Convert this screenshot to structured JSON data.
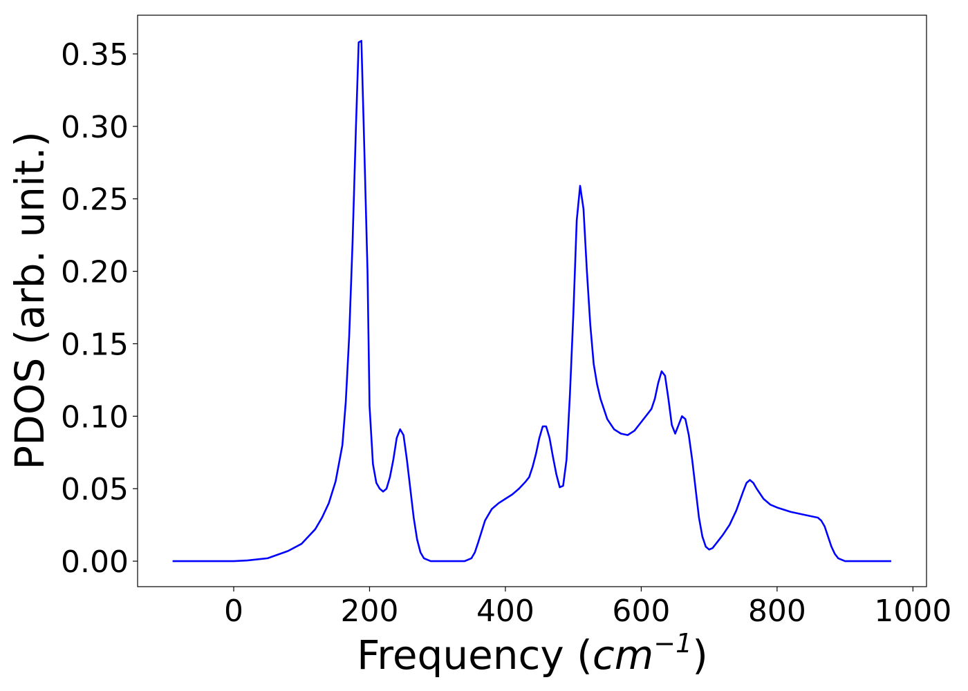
{
  "chart_data": {
    "type": "line",
    "xlabel": [
      "Frequency (",
      "cm",
      "−1",
      ")"
    ],
    "ylabel": "PDOS (arb. unit.)",
    "xlim": [
      -141.5,
      1020
    ],
    "ylim": [
      -0.0176,
      0.3767
    ],
    "xticks": [
      0,
      200,
      400,
      600,
      800,
      1000
    ],
    "yticks": [
      {
        "value": 0,
        "label": "0.00"
      },
      0.05,
      {
        "value": 0.1,
        "label": "0.10"
      },
      0.15,
      {
        "value": 0.2,
        "label": "0.20"
      },
      0.25,
      {
        "value": 0.3,
        "label": "0.30"
      },
      0.35
    ],
    "x": [
      -90,
      -50,
      0,
      20,
      50,
      80,
      100,
      120,
      130,
      140,
      150,
      160,
      165,
      170,
      175,
      180,
      184,
      188,
      192,
      197,
      200,
      205,
      210,
      215,
      220,
      225,
      230,
      235,
      240,
      245,
      250,
      255,
      260,
      265,
      270,
      275,
      280,
      290,
      340,
      350,
      355,
      360,
      370,
      380,
      390,
      400,
      410,
      420,
      430,
      435,
      440,
      445,
      450,
      455,
      460,
      465,
      470,
      475,
      480,
      485,
      490,
      495,
      500,
      505,
      510,
      515,
      520,
      525,
      530,
      535,
      540,
      550,
      560,
      570,
      580,
      590,
      600,
      610,
      615,
      620,
      625,
      630,
      635,
      640,
      645,
      650,
      655,
      660,
      665,
      670,
      675,
      680,
      685,
      690,
      695,
      700,
      705,
      710,
      720,
      730,
      740,
      750,
      755,
      760,
      765,
      770,
      780,
      790,
      800,
      820,
      840,
      860,
      865,
      870,
      875,
      880,
      885,
      890,
      900,
      968
    ],
    "series": [
      {
        "color": "#0000ff",
        "values": [
          0,
          0,
          0,
          0.0005,
          0.002,
          0.007,
          0.012,
          0.022,
          0.03,
          0.04,
          0.055,
          0.08,
          0.11,
          0.155,
          0.22,
          0.3,
          0.358,
          0.359,
          0.29,
          0.2,
          0.107,
          0.067,
          0.054,
          0.05,
          0.048,
          0.05,
          0.058,
          0.07,
          0.085,
          0.091,
          0.087,
          0.07,
          0.05,
          0.03,
          0.015,
          0.006,
          0.002,
          0,
          0,
          0.002,
          0.006,
          0.013,
          0.028,
          0.036,
          0.04,
          0.043,
          0.046,
          0.05,
          0.055,
          0.058,
          0.065,
          0.074,
          0.085,
          0.093,
          0.093,
          0.085,
          0.072,
          0.06,
          0.051,
          0.052,
          0.07,
          0.115,
          0.17,
          0.235,
          0.259,
          0.243,
          0.2,
          0.163,
          0.136,
          0.122,
          0.112,
          0.098,
          0.091,
          0.088,
          0.087,
          0.09,
          0.096,
          0.102,
          0.105,
          0.112,
          0.123,
          0.131,
          0.128,
          0.112,
          0.094,
          0.088,
          0.094,
          0.1,
          0.098,
          0.087,
          0.07,
          0.05,
          0.03,
          0.017,
          0.01,
          0.008,
          0.009,
          0.012,
          0.018,
          0.025,
          0.035,
          0.048,
          0.054,
          0.056,
          0.054,
          0.05,
          0.043,
          0.039,
          0.037,
          0.034,
          0.032,
          0.03,
          0.028,
          0.024,
          0.017,
          0.01,
          0.005,
          0.002,
          0,
          0
        ]
      }
    ]
  }
}
